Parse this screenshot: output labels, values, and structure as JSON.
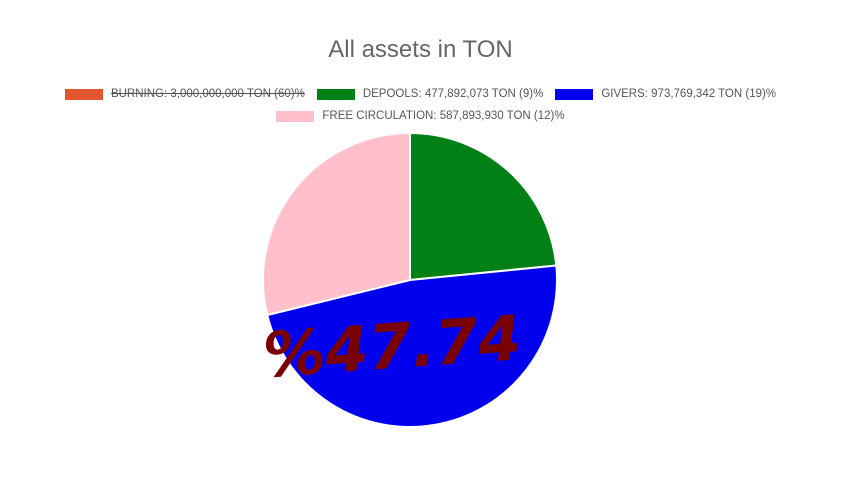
{
  "chart_data": {
    "type": "pie",
    "title": "All assets in TON",
    "legend_position": "top",
    "slices": [
      {
        "name": "BURNING",
        "label": "BURNING: 3,000,000,000 TON (60)%",
        "value": 3000000000,
        "color": "#e4572e",
        "hidden": true
      },
      {
        "name": "DEPOOLS",
        "label": "DEPOOLS: 477,892,073 TON (9)%",
        "value": 477892073,
        "color": "#008015",
        "hidden": false
      },
      {
        "name": "GIVERS",
        "label": "GIVERS: 973,769,342 TON (19)%",
        "value": 973769342,
        "color": "#0000ee",
        "hidden": false
      },
      {
        "name": "FREE CIRCULATION",
        "label": "FREE CIRCULATION: 587,893,930 TON (12)%",
        "value": 587893930,
        "color": "#ffc0cb",
        "hidden": false
      }
    ],
    "annotation": {
      "text": "%47.74",
      "color": "#7a0000"
    }
  }
}
